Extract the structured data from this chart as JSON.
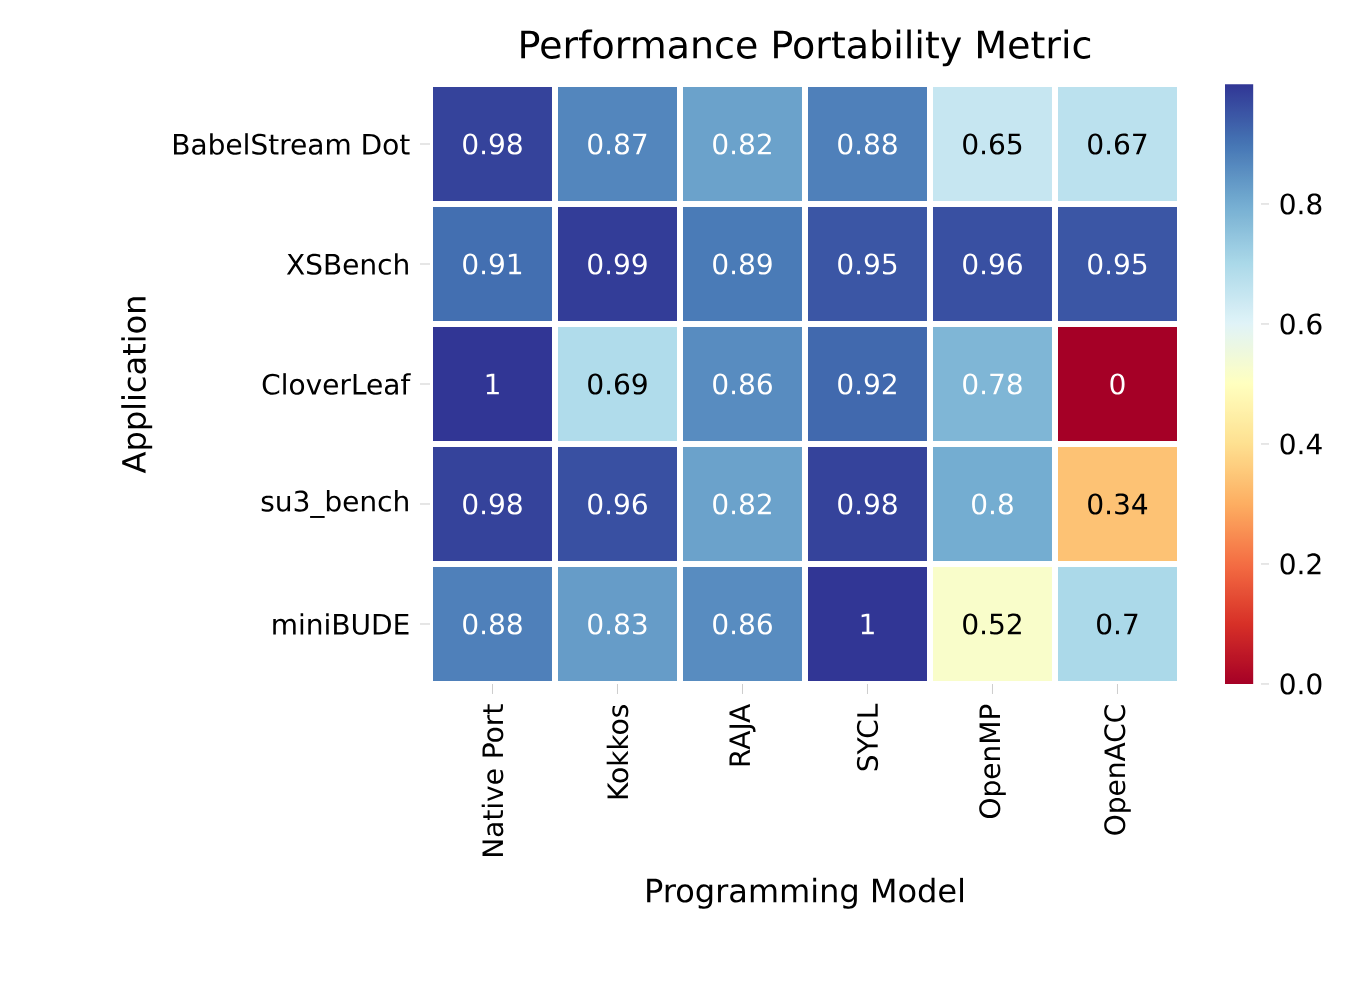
{
  "chart_data": {
    "type": "heatmap",
    "title": "Performance Portability Metric",
    "xlabel": "Programming Model",
    "ylabel": "Application",
    "categories": [
      "Native Port",
      "Kokkos",
      "RAJA",
      "SYCL",
      "OpenMP",
      "OpenACC"
    ],
    "y_categories": [
      "BabelStream Dot",
      "XSBench",
      "CloverLeaf",
      "su3_bench",
      "miniBUDE"
    ],
    "cells": [
      [
        0.98,
        0.87,
        0.82,
        0.88,
        0.65,
        0.67
      ],
      [
        0.91,
        0.99,
        0.89,
        0.95,
        0.96,
        0.95
      ],
      [
        1,
        0.69,
        0.86,
        0.92,
        0.78,
        0
      ],
      [
        0.98,
        0.96,
        0.82,
        0.98,
        0.8,
        0.34
      ],
      [
        0.88,
        0.83,
        0.86,
        1,
        0.52,
        0.7
      ]
    ],
    "data_labels": true,
    "clim": [
      0,
      1
    ],
    "cticks": [
      {
        "value": 0,
        "label": "0.0"
      },
      {
        "value": 0.2,
        "label": "0.2"
      },
      {
        "value": 0.4,
        "label": "0.4"
      },
      {
        "value": 0.6,
        "label": "0.6"
      },
      {
        "value": 0.8,
        "label": "0.8"
      }
    ]
  }
}
